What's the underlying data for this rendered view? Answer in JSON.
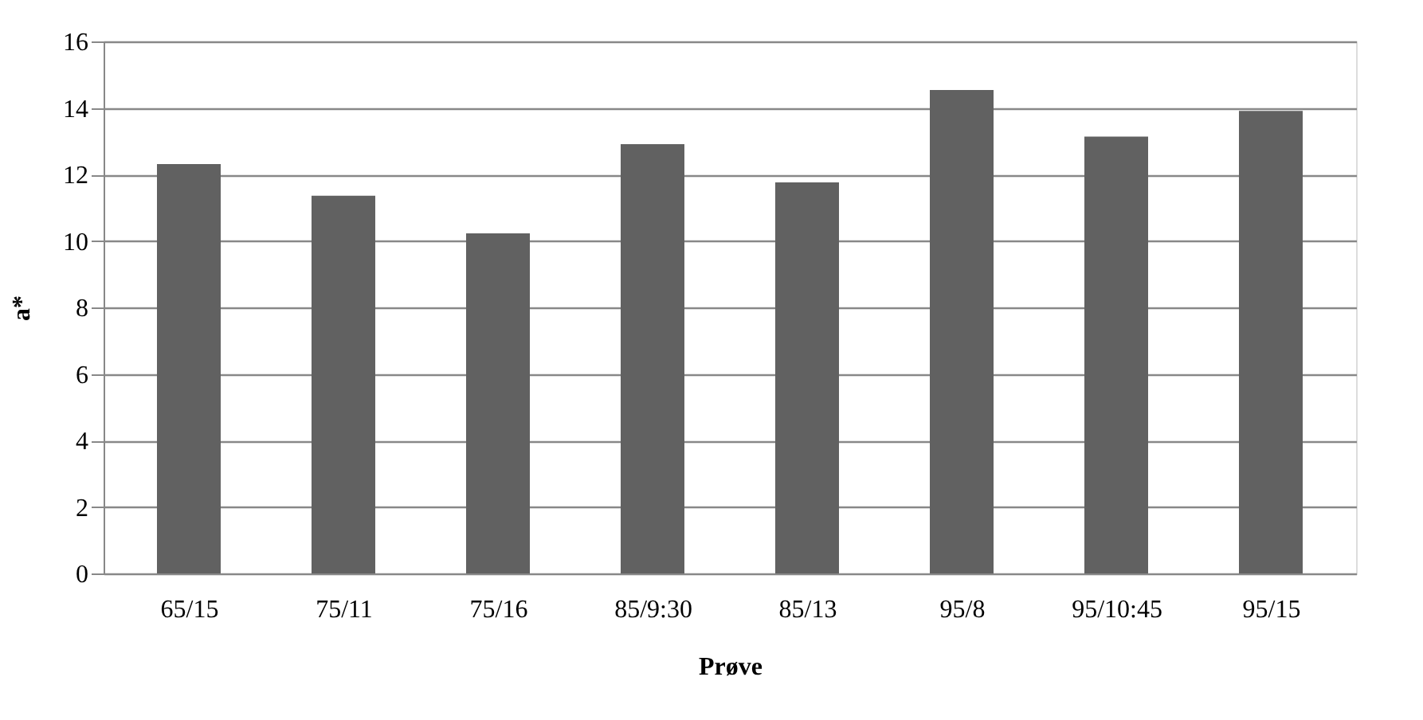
{
  "chart_data": {
    "type": "bar",
    "categories": [
      "65/15",
      "75/11",
      "75/16",
      "85/9:30",
      "85/13",
      "95/8",
      "95/10:45",
      "95/15"
    ],
    "values": [
      12.31,
      11.36,
      10.23,
      12.91,
      11.76,
      14.54,
      13.14,
      13.91
    ],
    "color": "#616161",
    "xlabel": "Prøve",
    "ylabel": "a*",
    "ylim": [
      0,
      16
    ],
    "yticks": [
      0,
      2,
      4,
      6,
      8,
      10,
      12,
      14,
      16
    ],
    "grid": "y"
  }
}
